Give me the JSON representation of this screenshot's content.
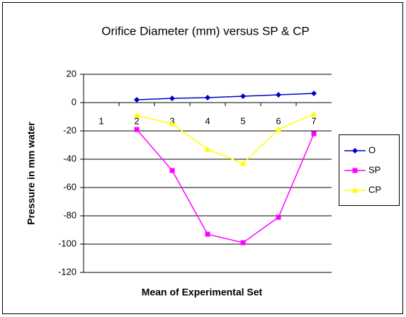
{
  "chart_data": {
    "type": "line",
    "title": "Orifice Diameter (mm) versus SP & CP",
    "x_label": "Mean of Experimental Set",
    "y_label": "Pressure in mm water",
    "categories": [
      "1",
      "2",
      "3",
      "4",
      "5",
      "6",
      "7"
    ],
    "series": [
      {
        "name": "O",
        "color": "#0000cc",
        "marker": "diamond",
        "values": [
          null,
          2,
          3,
          3.5,
          4.5,
          5.5,
          6.5
        ]
      },
      {
        "name": "SP",
        "color": "#ff00ff",
        "marker": "square",
        "values": [
          null,
          -19,
          -48,
          -93,
          -99,
          -81,
          -22
        ]
      },
      {
        "name": "CP",
        "color": "#ffff00",
        "marker": "triangle",
        "values": [
          null,
          -9,
          -15,
          -33,
          -43,
          -19,
          -8
        ]
      }
    ],
    "ylim": [
      -120,
      20
    ],
    "yticks": [
      -120,
      -100,
      -80,
      -60,
      -40,
      -20,
      0,
      20
    ],
    "grid": true,
    "legend": "right"
  }
}
